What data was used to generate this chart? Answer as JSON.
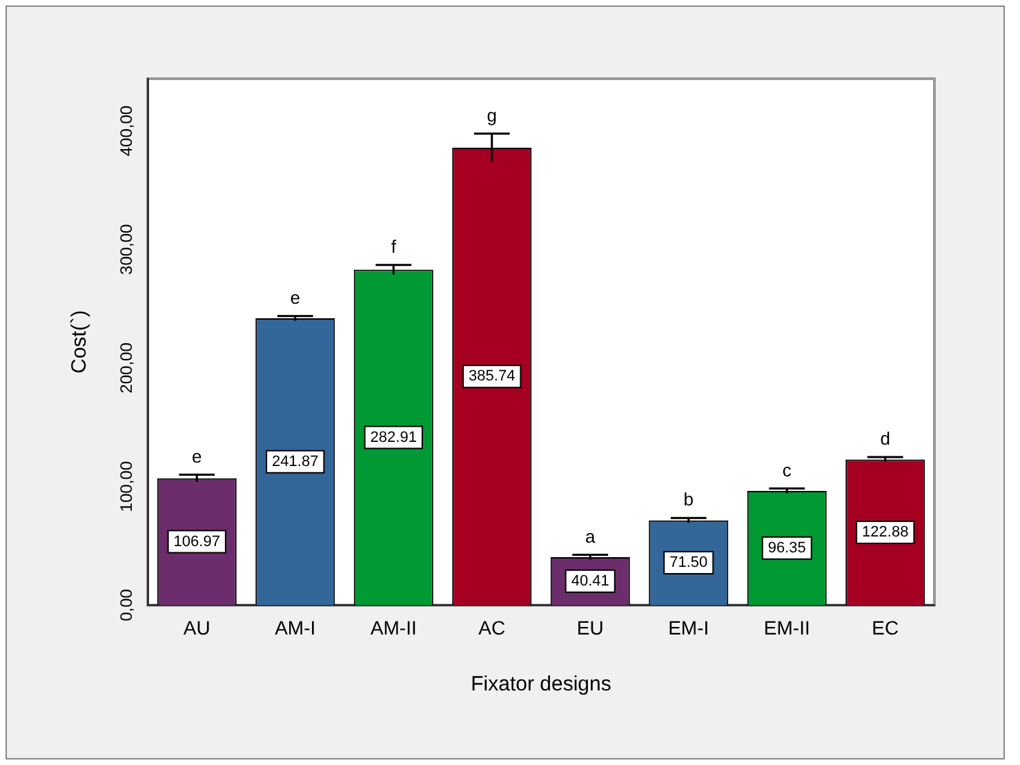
{
  "chart_data": {
    "type": "bar",
    "xlabel": "Fixator designs",
    "ylabel": "Cost(`)",
    "categories": [
      "AU",
      "AM-I",
      "AM-II",
      "AC",
      "EU",
      "EM-I",
      "EM-II",
      "EC"
    ],
    "values": [
      106.97,
      241.87,
      282.91,
      385.74,
      40.41,
      71.5,
      96.35,
      122.88
    ],
    "colors": [
      "#6b2d6b",
      "#336699",
      "#009933",
      "#a50021",
      "#6b2d6b",
      "#336699",
      "#009933",
      "#a50021"
    ],
    "errors": [
      3,
      2,
      4,
      12,
      2,
      2,
      2,
      2
    ],
    "value_labels": [
      "106.97",
      "241.87",
      "282.91",
      "385.74",
      "40.41",
      "71.50",
      "96.35",
      "122.88"
    ],
    "annotations": [
      {
        "text": "e",
        "x": "AU",
        "y": 106.97
      },
      {
        "text": "e",
        "x": "AM-I",
        "y": 241.87
      },
      {
        "text": "f",
        "x": "AM-II",
        "y": 282.91
      },
      {
        "text": "g",
        "x": "AC",
        "y": 385.74
      },
      {
        "text": "a",
        "x": "EU",
        "y": 40.41
      },
      {
        "text": "b",
        "x": "EM-I",
        "y": 71.5
      },
      {
        "text": "c",
        "x": "EM-II",
        "y": 96.35
      },
      {
        "text": "d",
        "x": "EC",
        "y": 122.88
      }
    ],
    "ylim": [
      0,
      444
    ],
    "yticks": [
      {
        "value": 0,
        "label": "0,00"
      },
      {
        "value": 100,
        "label": "100,00"
      },
      {
        "value": 200,
        "label": "200,00"
      },
      {
        "value": 300,
        "label": "300,00"
      },
      {
        "value": 400,
        "label": "400,00"
      }
    ],
    "grid": false,
    "legend": false
  }
}
